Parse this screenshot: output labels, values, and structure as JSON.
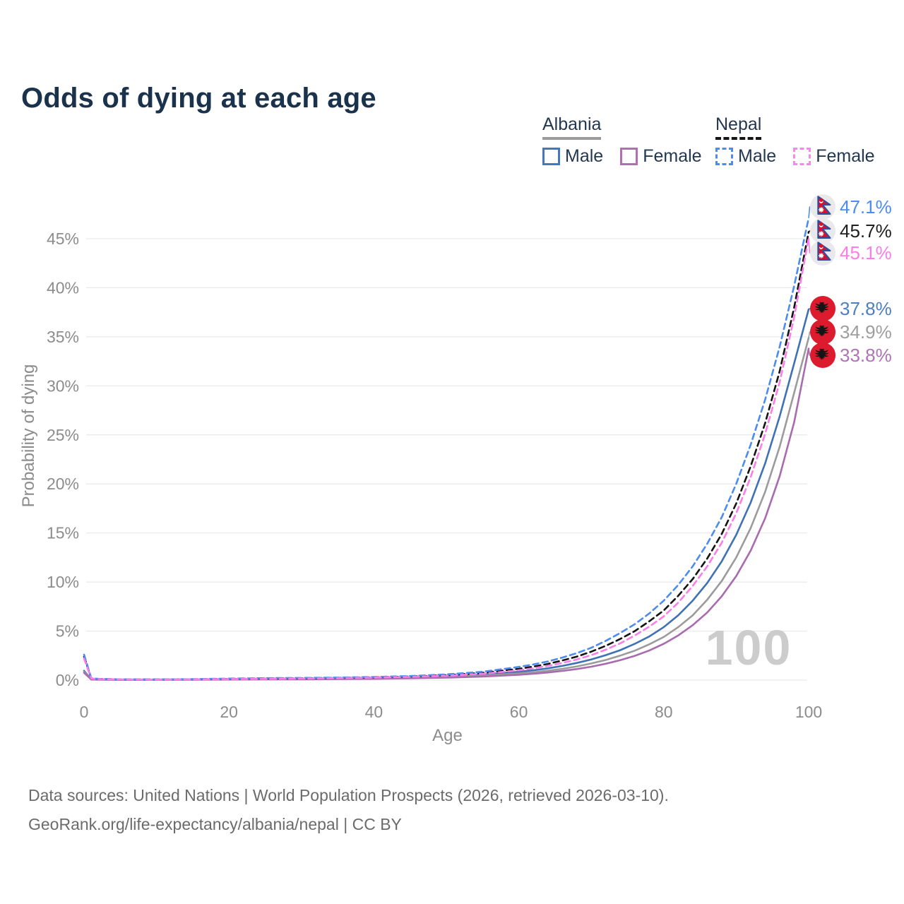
{
  "title": "Odds of dying at each age",
  "watermark": "100",
  "legend": {
    "groups": [
      {
        "country": "Albania",
        "underline_style": "solid",
        "underline_color": "#9b9b9b",
        "items": [
          {
            "label": "Male",
            "color": "#4478b8",
            "dash": "solid"
          },
          {
            "label": "Female",
            "color": "#b06fb0",
            "dash": "solid"
          }
        ]
      },
      {
        "country": "Nepal",
        "underline_style": "dashed",
        "underline_color": "#151515",
        "items": [
          {
            "label": "Male",
            "color": "#4c8cf0",
            "dash": "dashed"
          },
          {
            "label": "Female",
            "color": "#fb85e8",
            "dash": "dashed"
          }
        ]
      }
    ]
  },
  "chart_data": {
    "type": "line",
    "title": "Odds of dying at each age",
    "xlabel": "Age",
    "ylabel": "Probability of dying",
    "xlim": [
      0,
      100
    ],
    "ylim": [
      0,
      49
    ],
    "grid": "horizontal",
    "legend_position": "top-right",
    "x_ticks": [
      0,
      20,
      40,
      60,
      80,
      100
    ],
    "y_ticks": [
      0,
      5,
      10,
      15,
      20,
      25,
      30,
      35,
      40,
      45
    ],
    "y_tick_labels": [
      "0%",
      "5%",
      "10%",
      "15%",
      "20%",
      "25%",
      "30%",
      "35%",
      "40%",
      "45%"
    ],
    "x": [
      0,
      1,
      2,
      5,
      10,
      15,
      20,
      25,
      30,
      35,
      40,
      45,
      50,
      55,
      60,
      62,
      64,
      66,
      68,
      70,
      72,
      74,
      76,
      78,
      80,
      82,
      84,
      86,
      88,
      90,
      92,
      94,
      96,
      98,
      100
    ],
    "series": [
      {
        "id": "nepal-male",
        "name": "Nepal Male",
        "country": "Nepal",
        "sex": "Male",
        "color": "#4c8cf0",
        "dash": "dashed",
        "flag": "nepal-flag-icon",
        "end_label": "47.1%",
        "end_value": 47.1,
        "label_color": "#4a8cf2",
        "values": [
          2.6,
          0.18,
          0.13,
          0.08,
          0.07,
          0.1,
          0.16,
          0.2,
          0.22,
          0.26,
          0.32,
          0.42,
          0.58,
          0.85,
          1.35,
          1.6,
          1.9,
          2.3,
          2.75,
          3.3,
          4.0,
          4.8,
          5.7,
          6.8,
          8.1,
          9.7,
          11.6,
          13.9,
          16.6,
          20.0,
          24.0,
          28.6,
          34.0,
          40.2,
          47.1
        ]
      },
      {
        "id": "nepal-both",
        "name": "Nepal Both sexes",
        "country": "Nepal",
        "sex": "Both",
        "color": "#141414",
        "dash": "dashed",
        "flag": "nepal-flag-icon",
        "end_label": "45.7%",
        "end_value": 45.7,
        "label_color": "#1f1f1f",
        "values": [
          2.4,
          0.16,
          0.12,
          0.075,
          0.065,
          0.09,
          0.13,
          0.16,
          0.19,
          0.23,
          0.28,
          0.37,
          0.51,
          0.74,
          1.15,
          1.38,
          1.65,
          2.0,
          2.4,
          2.9,
          3.5,
          4.2,
          5.0,
          6.0,
          7.1,
          8.6,
          10.3,
          12.4,
          14.9,
          18.0,
          21.8,
          26.2,
          31.5,
          38.0,
          45.7
        ]
      },
      {
        "id": "nepal-female",
        "name": "Nepal Female",
        "country": "Nepal",
        "sex": "Female",
        "color": "#fb7de8",
        "dash": "dashed",
        "flag": "nepal-flag-icon",
        "end_label": "45.1%",
        "end_value": 45.1,
        "label_color": "#fb7de8",
        "values": [
          2.2,
          0.15,
          0.11,
          0.07,
          0.06,
          0.08,
          0.11,
          0.13,
          0.16,
          0.2,
          0.25,
          0.33,
          0.45,
          0.65,
          1.0,
          1.2,
          1.45,
          1.75,
          2.1,
          2.55,
          3.1,
          3.75,
          4.55,
          5.45,
          6.5,
          7.9,
          9.6,
          11.6,
          14.0,
          17.0,
          20.7,
          25.1,
          30.4,
          37.0,
          45.1
        ]
      },
      {
        "id": "albania-male",
        "name": "Albania Male",
        "country": "Albania",
        "sex": "Male",
        "color": "#3e72b5",
        "dash": "solid",
        "flag": "albania-flag-icon",
        "end_label": "37.8%",
        "end_value": 37.8,
        "label_color": "#4d7fc0",
        "values": [
          0.95,
          0.08,
          0.06,
          0.05,
          0.05,
          0.07,
          0.1,
          0.12,
          0.13,
          0.15,
          0.19,
          0.26,
          0.38,
          0.57,
          0.85,
          1.0,
          1.2,
          1.45,
          1.75,
          2.1,
          2.55,
          3.05,
          3.7,
          4.45,
          5.4,
          6.6,
          8.1,
          9.9,
          12.1,
          14.8,
          18.1,
          22.1,
          26.9,
          32.3,
          37.8
        ]
      },
      {
        "id": "albania-both",
        "name": "Albania Both sexes",
        "country": "Albania",
        "sex": "Both",
        "color": "#9b9b9b",
        "dash": "solid",
        "flag": "albania-flag-icon",
        "end_label": "34.9%",
        "end_value": 34.9,
        "label_color": "#9e9e9e",
        "values": [
          0.85,
          0.07,
          0.055,
          0.045,
          0.04,
          0.055,
          0.08,
          0.09,
          0.1,
          0.12,
          0.16,
          0.22,
          0.31,
          0.46,
          0.68,
          0.8,
          0.96,
          1.15,
          1.4,
          1.7,
          2.05,
          2.5,
          3.0,
          3.65,
          4.4,
          5.4,
          6.6,
          8.2,
          10.1,
          12.5,
          15.5,
          19.2,
          23.8,
          29.3,
          34.9
        ]
      },
      {
        "id": "albania-female",
        "name": "Albania Female",
        "country": "Albania",
        "sex": "Female",
        "color": "#a96bb0",
        "dash": "solid",
        "flag": "albania-flag-icon",
        "end_label": "33.8%",
        "end_value": 33.8,
        "label_color": "#ad73b5",
        "values": [
          0.75,
          0.06,
          0.05,
          0.04,
          0.035,
          0.045,
          0.06,
          0.07,
          0.08,
          0.1,
          0.13,
          0.18,
          0.25,
          0.37,
          0.55,
          0.65,
          0.78,
          0.94,
          1.13,
          1.37,
          1.67,
          2.03,
          2.48,
          3.02,
          3.7,
          4.55,
          5.6,
          6.9,
          8.55,
          10.6,
          13.2,
          16.5,
          20.8,
          26.3,
          33.8
        ]
      }
    ]
  },
  "footer": {
    "line1": "Data sources: United Nations | World Population Prospects (2026, retrieved 2026-03-10).",
    "line2": "GeoRank.org/life-expectancy/albania/nepal | CC BY"
  }
}
